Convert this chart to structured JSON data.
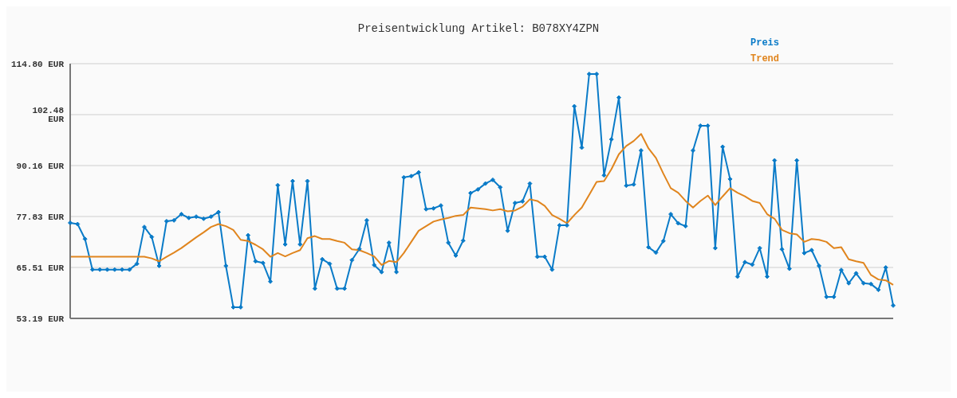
{
  "chart_data": {
    "type": "line",
    "title": "Preisentwicklung Artikel: B078XY4ZPN",
    "categories": [
      null,
      null,
      null,
      null,
      null,
      null,
      null,
      null,
      null,
      null,
      null,
      null,
      null,
      null,
      null,
      null,
      null,
      null,
      null,
      null,
      null,
      null,
      null,
      null,
      null,
      null,
      null,
      null,
      null,
      null,
      null,
      null,
      null,
      null,
      null,
      null,
      null,
      null,
      null,
      null,
      null,
      null,
      null,
      null,
      null,
      null,
      null,
      null,
      null,
      null,
      null,
      null,
      null,
      null,
      null,
      null,
      null,
      null,
      null,
      null,
      null,
      null,
      null,
      null,
      null,
      null,
      null,
      null,
      null,
      null,
      null,
      null,
      null,
      null,
      null,
      null,
      null,
      null,
      null,
      null,
      null,
      null,
      null,
      null,
      null,
      null,
      null,
      null,
      null,
      null,
      null,
      null,
      null,
      null,
      null,
      null,
      null,
      null,
      null,
      null,
      null,
      null,
      null,
      null,
      null,
      null,
      null,
      null,
      null,
      null,
      null,
      null
    ],
    "series": [
      {
        "name": "Preis",
        "color": "#0a7bc8",
        "marker": "diamond",
        "values": [
          76.3,
          76.0,
          72.4,
          65.0,
          65.0,
          65.0,
          65.0,
          65.0,
          65.0,
          66.4,
          75.3,
          72.9,
          65.9,
          76.7,
          76.9,
          78.4,
          77.5,
          77.8,
          77.3,
          77.8,
          78.9,
          65.9,
          55.9,
          55.9,
          73.3,
          67.0,
          66.6,
          62.1,
          85.4,
          71.1,
          86.4,
          71.1,
          86.4,
          60.4,
          67.5,
          66.4,
          60.4,
          60.4,
          67.3,
          70.0,
          76.9,
          66.1,
          64.4,
          71.5,
          64.4,
          87.3,
          87.6,
          88.5,
          79.6,
          79.8,
          80.5,
          71.5,
          68.4,
          72.0,
          83.5,
          84.4,
          85.8,
          86.7,
          84.9,
          74.4,
          81.1,
          81.5,
          85.8,
          68.1,
          68.1,
          65.0,
          75.7,
          75.7,
          104.5,
          94.5,
          112.3,
          112.3,
          87.8,
          96.5,
          106.6,
          85.3,
          85.6,
          93.8,
          70.4,
          69.1,
          71.9,
          78.4,
          76.2,
          75.5,
          93.8,
          99.8,
          99.8,
          70.2,
          94.7,
          86.9,
          63.3,
          66.8,
          66.2,
          70.2,
          63.3,
          91.4,
          69.9,
          65.2,
          91.4,
          69.0,
          69.7,
          65.9,
          58.4,
          58.4,
          64.9,
          61.7,
          64.1,
          61.7,
          61.5,
          60.1,
          65.5,
          56.3
        ]
      },
      {
        "name": "Trend",
        "color": "#e0851e",
        "marker": "none",
        "values": [
          68.1,
          68.1,
          68.1,
          68.1,
          68.1,
          68.1,
          68.1,
          68.1,
          68.1,
          68.1,
          68.1,
          67.7,
          67.0,
          68.1,
          69.1,
          70.2,
          71.5,
          72.8,
          74.0,
          75.3,
          76.0,
          75.5,
          74.6,
          72.2,
          71.9,
          71.0,
          69.9,
          68.1,
          69.0,
          68.2,
          69.0,
          69.7,
          72.6,
          73.1,
          72.4,
          72.4,
          71.9,
          71.5,
          69.9,
          69.7,
          69.0,
          68.2,
          66.1,
          67.1,
          66.8,
          69.0,
          71.7,
          74.4,
          75.5,
          76.6,
          77.1,
          77.5,
          78.0,
          78.2,
          80.0,
          79.8,
          79.6,
          79.3,
          79.6,
          79.1,
          79.3,
          80.2,
          82.0,
          81.6,
          80.4,
          78.2,
          77.3,
          76.2,
          78.2,
          80.0,
          83.1,
          86.2,
          86.4,
          89.3,
          92.9,
          94.9,
          96.1,
          97.8,
          94.3,
          92.0,
          88.2,
          84.7,
          83.6,
          81.6,
          80.0,
          81.6,
          82.9,
          80.6,
          82.7,
          84.7,
          83.6,
          82.7,
          81.6,
          81.1,
          78.4,
          77.3,
          74.6,
          73.8,
          73.5,
          71.7,
          72.4,
          72.2,
          71.7,
          70.2,
          70.4,
          67.5,
          67.0,
          66.6,
          63.7,
          62.6,
          62.4,
          61.3
        ]
      }
    ],
    "ylim": [
      53.19,
      114.8
    ],
    "yticks": [
      {
        "value": 53.19,
        "label": "53.19 EUR"
      },
      {
        "value": 65.51,
        "label": "65.51 EUR"
      },
      {
        "value": 77.83,
        "label": "77.83 EUR"
      },
      {
        "value": 90.16,
        "label": "90.16 EUR"
      },
      {
        "value": 102.48,
        "label": "102.48 EUR"
      },
      {
        "value": 114.8,
        "label": "114.80 EUR"
      }
    ],
    "grid": "y",
    "legend": "top right",
    "tick_labels": "y",
    "line_style": "solid"
  }
}
